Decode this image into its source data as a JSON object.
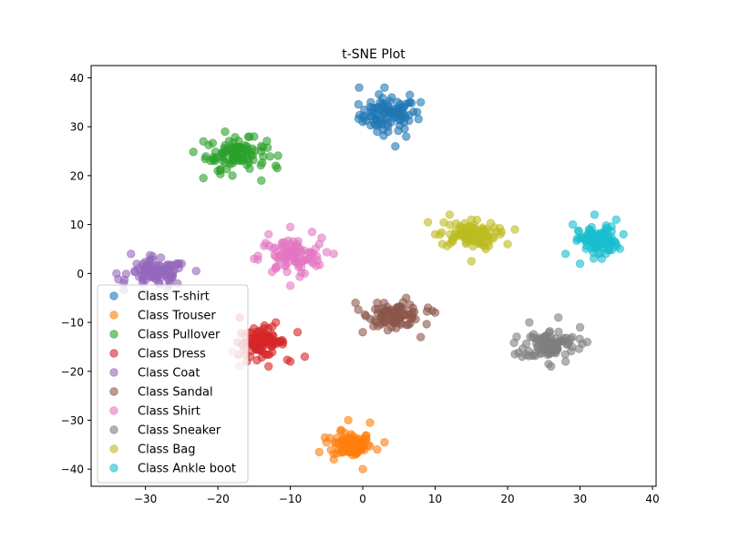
{
  "chart_data": {
    "type": "scatter",
    "title": "t-SNE Plot",
    "xlabel": "",
    "ylabel": "",
    "xlim": [
      -37.5,
      40.5
    ],
    "ylim": [
      -43.5,
      42.5
    ],
    "xticks": [
      -30,
      -20,
      -10,
      0,
      10,
      20,
      30,
      40
    ],
    "yticks": [
      -40,
      -30,
      -20,
      -10,
      0,
      10,
      20,
      30,
      40
    ],
    "grid": false,
    "legend_position": "lower-left",
    "marker_alpha": 0.6,
    "series": [
      {
        "name": "Class T-shirt",
        "color": "#1f77b4",
        "n": 100,
        "center": [
          3.5,
          32.5
        ],
        "spread": [
          3.6,
          3.0
        ],
        "points": [
          [
            -0.5,
            38
          ],
          [
            3,
            38
          ],
          [
            6.5,
            36.5
          ],
          [
            4,
            36
          ],
          [
            1,
            34
          ],
          [
            8,
            35
          ],
          [
            5.5,
            34
          ],
          [
            0,
            31
          ],
          [
            2,
            29
          ],
          [
            3.5,
            29
          ],
          [
            6,
            28
          ],
          [
            4.5,
            26
          ],
          [
            7.5,
            33
          ]
        ]
      },
      {
        "name": "Class Trouser",
        "color": "#ff7f0e",
        "n": 100,
        "center": [
          -1.5,
          -35
        ],
        "spread": [
          2.4,
          2.3
        ],
        "points": [
          [
            -2,
            -30
          ],
          [
            1,
            -30.5
          ],
          [
            3,
            -34.5
          ],
          [
            -5,
            -34.5
          ],
          [
            -4,
            -38
          ],
          [
            0,
            -40
          ],
          [
            -1,
            -37
          ],
          [
            -3,
            -32
          ],
          [
            2,
            -36
          ],
          [
            -6,
            -36.5
          ]
        ]
      },
      {
        "name": "Class Pullover",
        "color": "#2ca02c",
        "n": 100,
        "center": [
          -17.5,
          24.5
        ],
        "spread": [
          3.8,
          2.7
        ],
        "points": [
          [
            -22,
            27
          ],
          [
            -19,
            29
          ],
          [
            -15,
            28
          ],
          [
            -21,
            23
          ],
          [
            -12,
            22
          ],
          [
            -18,
            20
          ],
          [
            -22,
            19.5
          ],
          [
            -16,
            26
          ],
          [
            -14,
            19
          ],
          [
            -20,
            21
          ]
        ]
      },
      {
        "name": "Class Dress",
        "color": "#d62728",
        "n": 100,
        "center": [
          -14,
          -14
        ],
        "spread": [
          2.9,
          2.6
        ],
        "points": [
          [
            -17,
            -9
          ],
          [
            -12,
            -10
          ],
          [
            -9,
            -12
          ],
          [
            -8,
            -17
          ],
          [
            -13,
            -19
          ],
          [
            -16,
            -18
          ],
          [
            -10,
            -18
          ],
          [
            -15,
            -13
          ],
          [
            -11,
            -14
          ]
        ]
      },
      {
        "name": "Class Coat",
        "color": "#9467bd",
        "n": 100,
        "center": [
          -28.5,
          0
        ],
        "spread": [
          3.6,
          2.4
        ],
        "points": [
          [
            -32,
            4
          ],
          [
            -29,
            3.5
          ],
          [
            -34,
            0
          ],
          [
            -23,
            0.5
          ],
          [
            -25,
            2
          ],
          [
            -30,
            -4
          ],
          [
            -33,
            -2
          ],
          [
            -27,
            -3
          ],
          [
            -31,
            1
          ]
        ]
      },
      {
        "name": "Class Sandal",
        "color": "#8c564b",
        "n": 100,
        "center": [
          4.5,
          -8.5
        ],
        "spread": [
          3.3,
          2.0
        ],
        "points": [
          [
            -1,
            -6
          ],
          [
            2,
            -6
          ],
          [
            6,
            -5
          ],
          [
            9,
            -7
          ],
          [
            10,
            -8
          ],
          [
            4,
            -11
          ],
          [
            0,
            -12
          ],
          [
            8,
            -13
          ],
          [
            5,
            -9
          ]
        ]
      },
      {
        "name": "Class Shirt",
        "color": "#e377c2",
        "n": 100,
        "center": [
          -10,
          3.5
        ],
        "spread": [
          3.9,
          3.4
        ],
        "points": [
          [
            -13,
            8
          ],
          [
            -10,
            9.5
          ],
          [
            -7,
            8.5
          ],
          [
            -4,
            4
          ],
          [
            -12,
            1
          ],
          [
            -8,
            0
          ],
          [
            -10,
            -2.5
          ],
          [
            -15,
            3
          ],
          [
            -6,
            6
          ],
          [
            -18,
            -16
          ],
          [
            -17,
            -19
          ]
        ]
      },
      {
        "name": "Class Sneaker",
        "color": "#7f7f7f",
        "n": 100,
        "center": [
          26,
          -14.5
        ],
        "spread": [
          3.3,
          2.6
        ],
        "points": [
          [
            23,
            -10
          ],
          [
            27,
            -9
          ],
          [
            30,
            -11
          ],
          [
            31,
            -14
          ],
          [
            26,
            -19
          ],
          [
            22,
            -17
          ],
          [
            21,
            -16.5
          ],
          [
            28,
            -18
          ],
          [
            25,
            -13
          ]
        ]
      },
      {
        "name": "Class Bag",
        "color": "#bcbd22",
        "n": 100,
        "center": [
          14.5,
          8
        ],
        "spread": [
          3.6,
          2.3
        ],
        "points": [
          [
            9,
            10.5
          ],
          [
            12,
            12
          ],
          [
            15,
            11
          ],
          [
            19,
            8
          ],
          [
            21,
            9
          ],
          [
            17,
            5
          ],
          [
            15,
            2.5
          ],
          [
            11,
            6
          ],
          [
            20,
            6
          ],
          [
            10,
            8
          ]
        ]
      },
      {
        "name": "Class Ankle boot",
        "color": "#17becf",
        "n": 100,
        "center": [
          32.5,
          6.5
        ],
        "spread": [
          2.4,
          2.8
        ],
        "points": [
          [
            29,
            10
          ],
          [
            32,
            12
          ],
          [
            35,
            11
          ],
          [
            36,
            8
          ],
          [
            33,
            3
          ],
          [
            30,
            2
          ],
          [
            28,
            4
          ],
          [
            35,
            6
          ],
          [
            31,
            7
          ]
        ]
      }
    ]
  }
}
